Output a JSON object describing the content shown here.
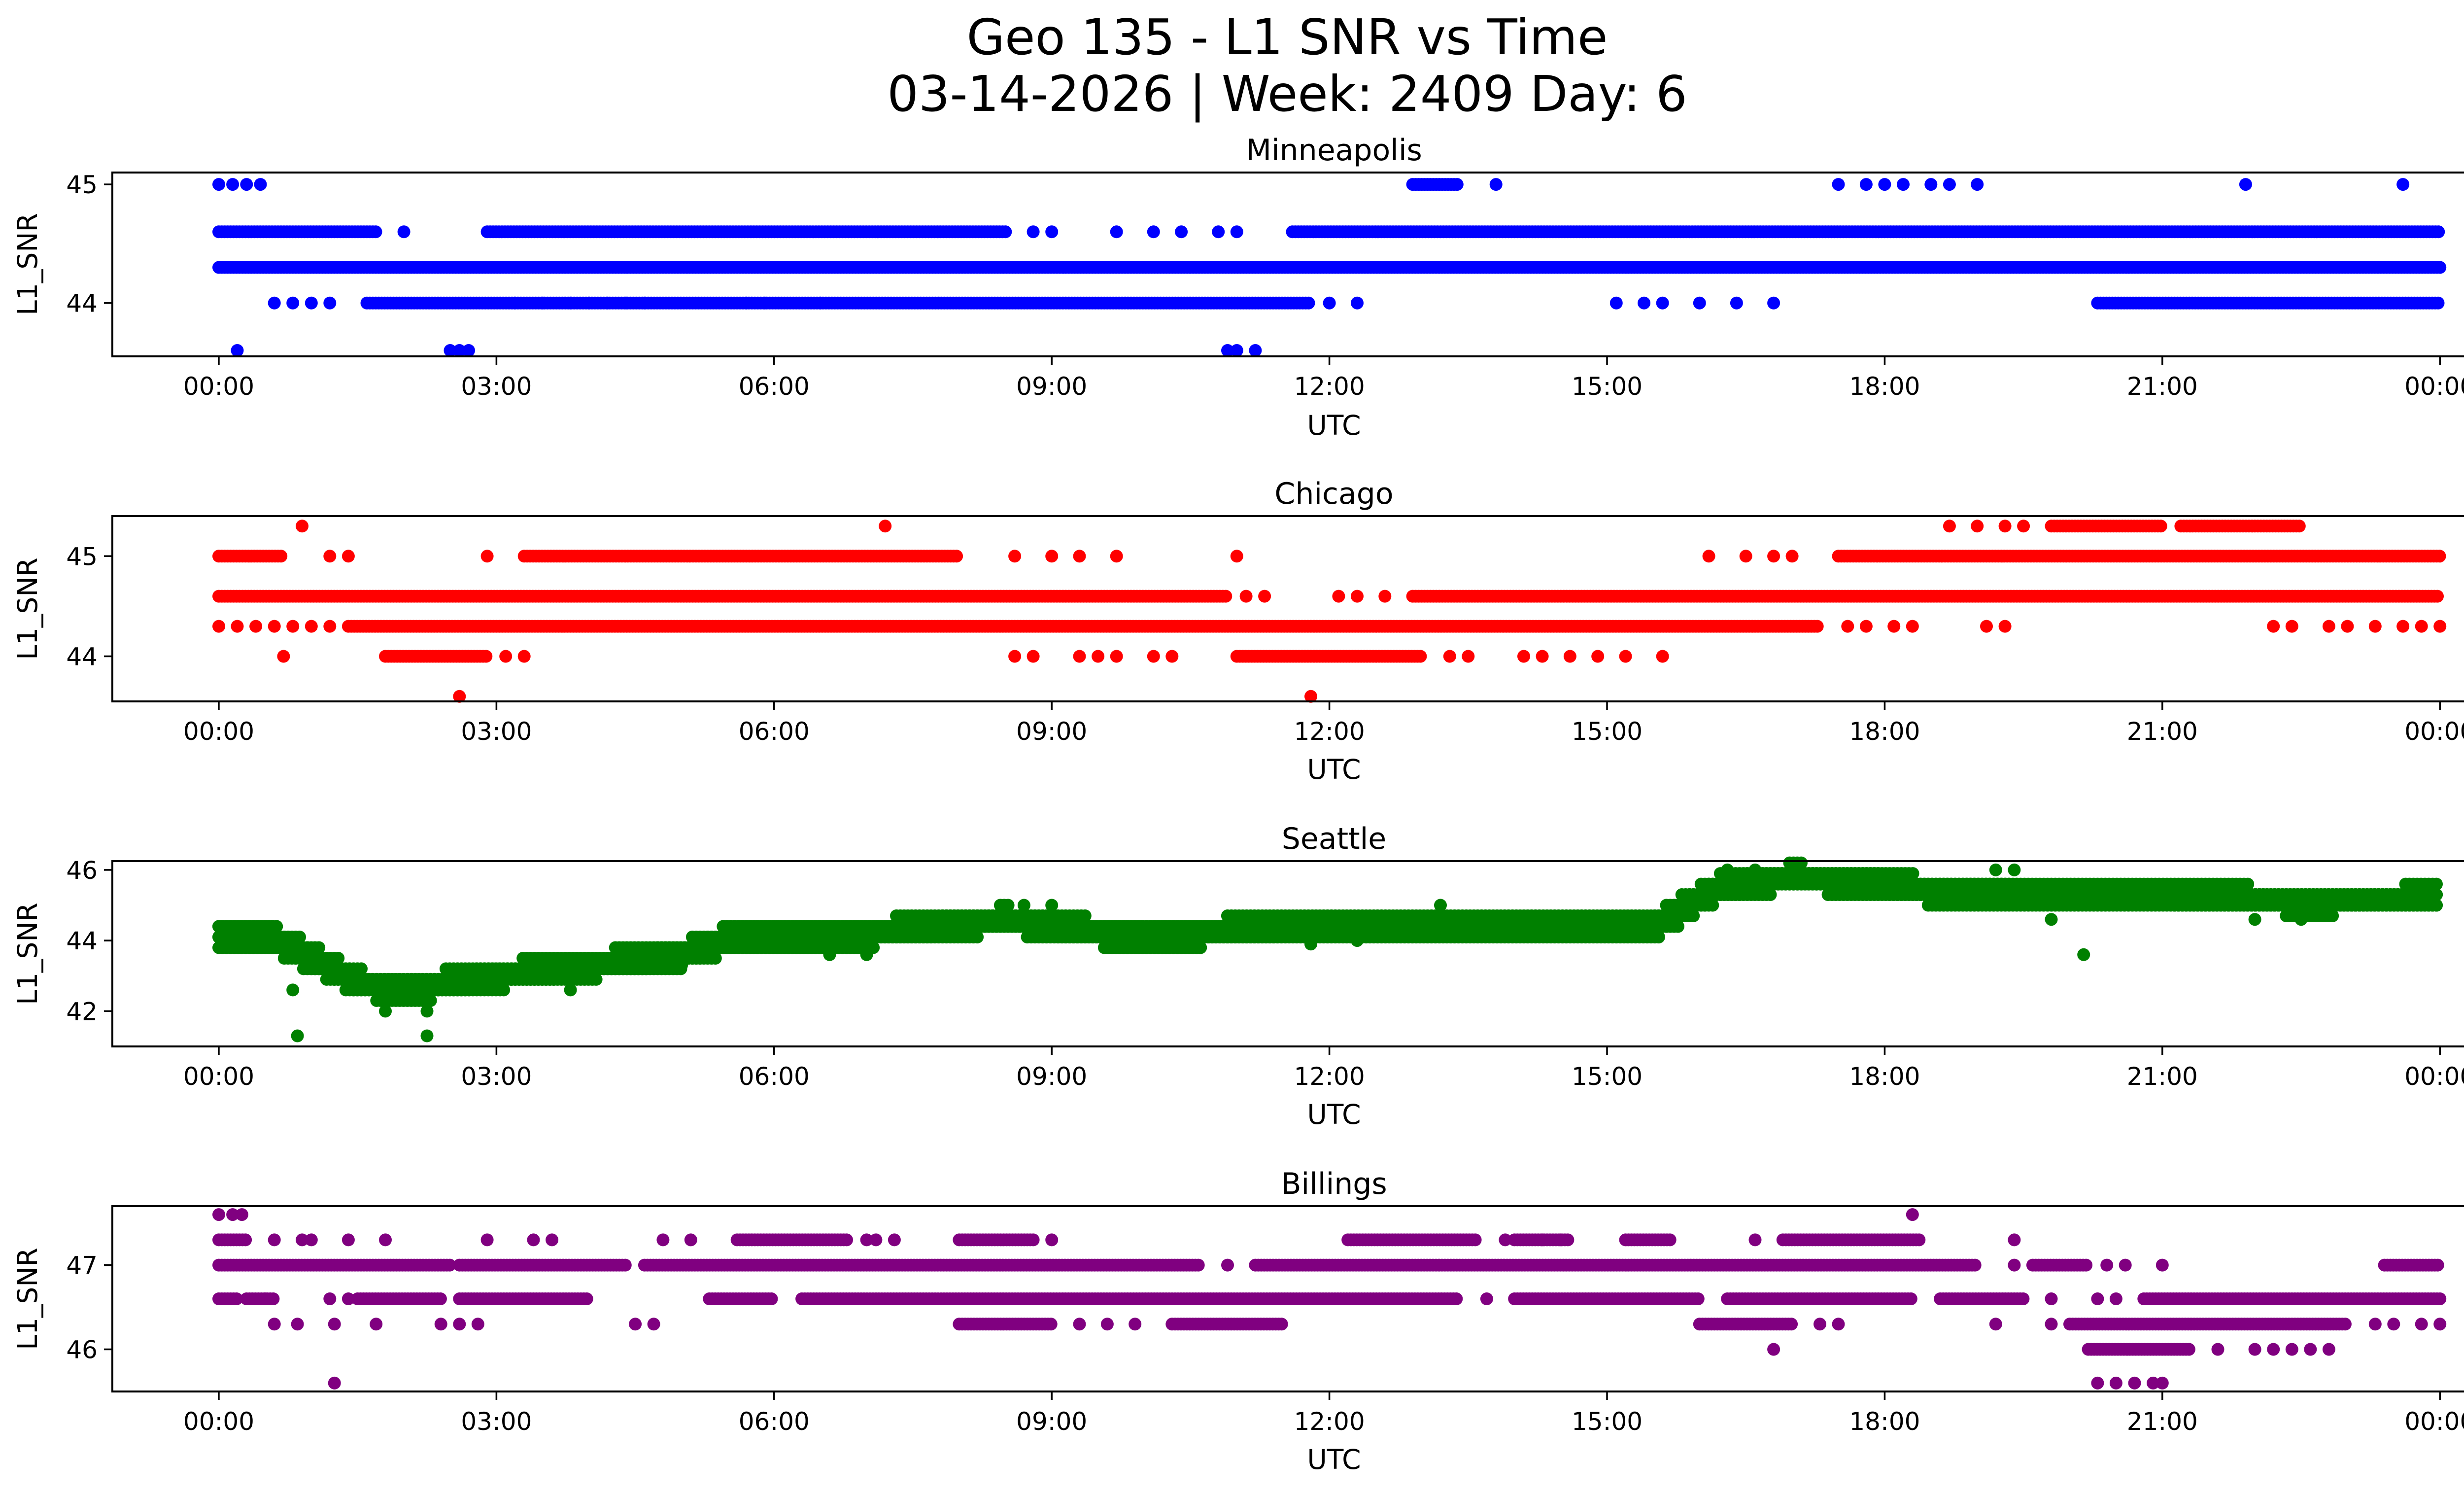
{
  "figure": {
    "title_line1": "Geo 135 - L1 SNR vs Time",
    "title_line2": "03-14-2026 | Week: 2409 Day: 6"
  },
  "chart_data": [
    {
      "type": "scatter",
      "title": "Minneapolis",
      "color": "#0000ff",
      "xlabel": "UTC",
      "ylabel": "L1_SNR",
      "x_units": "hours (UTC)",
      "xlim": [
        -1.15,
        25.25
      ],
      "ylim": [
        43.55,
        45.1
      ],
      "xticks": [
        0,
        3,
        6,
        9,
        12,
        15,
        18,
        21,
        24
      ],
      "xtick_labels": [
        "00:00",
        "03:00",
        "06:00",
        "09:00",
        "12:00",
        "15:00",
        "18:00",
        "21:00",
        "00:00"
      ],
      "yticks": [
        44,
        45
      ],
      "ytick_labels": [
        "44",
        "45"
      ],
      "series": [
        {
          "name": "band 44.3 (dense)",
          "y": 44.3,
          "segments": [
            [
              0,
              24
            ]
          ]
        },
        {
          "name": "band 44.6",
          "y": 44.6,
          "segments": [
            [
              0,
              1.7
            ],
            [
              2.9,
              8.5
            ],
            [
              11.6,
              24
            ]
          ],
          "scattered_x": [
            2.0,
            8.8,
            9.0,
            9.7,
            10.1,
            10.4,
            10.8,
            11.0
          ]
        },
        {
          "name": "band 44.0",
          "y": 44.0,
          "segments": [
            [
              1.6,
              11.8
            ],
            [
              20.3,
              24
            ]
          ],
          "scattered_x": [
            0.6,
            0.8,
            1.0,
            1.2,
            3.2,
            3.5,
            3.8,
            4.0,
            4.2,
            4.4,
            4.6,
            5.7,
            5.9,
            6.5,
            12.0,
            12.3,
            15.1,
            15.4,
            15.6,
            16.0,
            16.4,
            16.8
          ]
        },
        {
          "name": "band 45.0",
          "y": 45.0,
          "segments": [
            [
              12.9,
              13.4
            ]
          ],
          "scattered_x": [
            0.0,
            0.15,
            0.3,
            0.45,
            13.8,
            17.5,
            17.8,
            18.0,
            18.2,
            18.5,
            18.7,
            19.0,
            21.9,
            23.6
          ]
        },
        {
          "name": "band 43.6",
          "y": 43.6,
          "scattered_x": [
            0.2,
            2.5,
            2.6,
            2.7,
            10.9,
            11.0,
            11.2
          ]
        }
      ]
    },
    {
      "type": "scatter",
      "title": "Chicago",
      "color": "#ff0000",
      "xlabel": "UTC",
      "ylabel": "L1_SNR",
      "x_units": "hours (UTC)",
      "xlim": [
        -1.15,
        25.25
      ],
      "ylim": [
        43.55,
        45.4
      ],
      "xticks": [
        0,
        3,
        6,
        9,
        12,
        15,
        18,
        21,
        24
      ],
      "xtick_labels": [
        "00:00",
        "03:00",
        "06:00",
        "09:00",
        "12:00",
        "15:00",
        "18:00",
        "21:00",
        "00:00"
      ],
      "yticks": [
        44,
        45
      ],
      "ytick_labels": [
        "44",
        "45"
      ],
      "series": [
        {
          "name": "band 44.6 (dense)",
          "y": 44.6,
          "segments": [
            [
              0,
              10.9
            ],
            [
              12.9,
              24
            ]
          ],
          "scattered_x": [
            11.1,
            11.3,
            12.1,
            12.3,
            12.6
          ]
        },
        {
          "name": "band 44.3",
          "y": 44.3,
          "segments": [
            [
              1.4,
              17.3
            ]
          ],
          "scattered_x": [
            0.0,
            0.2,
            0.4,
            0.6,
            0.8,
            1.0,
            1.2,
            17.6,
            17.8,
            18.1,
            18.3,
            19.1,
            19.3,
            22.2,
            22.4,
            22.8,
            23.0,
            23.3,
            23.6,
            23.8,
            24.0
          ]
        },
        {
          "name": "band 45.0",
          "y": 45.0,
          "segments": [
            [
              0,
              0.7
            ],
            [
              3.3,
              8.0
            ],
            [
              17.5,
              24
            ]
          ],
          "scattered_x": [
            1.2,
            1.4,
            2.9,
            8.6,
            9.0,
            9.3,
            9.7,
            11.0,
            16.1,
            16.5,
            16.8,
            17.0
          ]
        },
        {
          "name": "band 44.0",
          "y": 44.0,
          "segments": [
            [
              1.8,
              2.9
            ],
            [
              11.0,
              13.0
            ]
          ],
          "scattered_x": [
            0.7,
            3.1,
            3.3,
            8.6,
            8.8,
            9.3,
            9.5,
            9.7,
            10.1,
            10.3,
            13.3,
            13.5,
            14.1,
            14.3,
            14.6,
            14.9,
            15.2,
            15.6
          ]
        },
        {
          "name": "band 45.3",
          "y": 45.3,
          "segments": [
            [
              19.8,
              21.0
            ],
            [
              21.2,
              22.5
            ]
          ],
          "scattered_x": [
            0.9,
            7.2,
            18.7,
            19.0,
            19.3,
            19.5
          ]
        },
        {
          "name": "band 43.6",
          "y": 43.6,
          "scattered_x": [
            2.6,
            11.8
          ]
        }
      ]
    },
    {
      "type": "scatter",
      "title": "Seattle",
      "color": "#008000",
      "xlabel": "UTC",
      "ylabel": "L1_SNR",
      "x_units": "hours (UTC)",
      "xlim": [
        -1.15,
        25.25
      ],
      "ylim": [
        41.0,
        46.25
      ],
      "xticks": [
        0,
        3,
        6,
        9,
        12,
        15,
        18,
        21,
        24
      ],
      "xtick_labels": [
        "00:00",
        "03:00",
        "06:00",
        "09:00",
        "12:00",
        "15:00",
        "18:00",
        "21:00",
        "00:00"
      ],
      "yticks": [
        42,
        44,
        46
      ],
      "ytick_labels": [
        "42",
        "44",
        "46"
      ],
      "trend": {
        "x": [
          0,
          0.5,
          1.0,
          1.5,
          2.0,
          2.5,
          3.0,
          4.0,
          5.0,
          5.7,
          7.0,
          8.5,
          9.3,
          10.0,
          11.5,
          15.5,
          16.2,
          17.0,
          18.0,
          18.5,
          19.5,
          21.0,
          22.5,
          24.0
        ],
        "y": [
          44.2,
          44.2,
          43.5,
          42.8,
          42.6,
          42.8,
          43.0,
          43.3,
          43.6,
          44.2,
          44.2,
          44.6,
          44.3,
          44.1,
          44.4,
          44.4,
          45.5,
          45.8,
          45.6,
          45.4,
          45.3,
          45.3,
          45.1,
          45.2
        ],
        "spread": 0.55
      },
      "outliers": [
        {
          "x": 0.85,
          "y": 41.3
        },
        {
          "x": 2.25,
          "y": 41.3
        },
        {
          "x": 1.8,
          "y": 42.0
        },
        {
          "x": 2.25,
          "y": 42.0
        },
        {
          "x": 0.8,
          "y": 42.6
        },
        {
          "x": 3.8,
          "y": 42.6
        },
        {
          "x": 5.0,
          "y": 43.3
        },
        {
          "x": 6.6,
          "y": 43.6
        },
        {
          "x": 7.0,
          "y": 43.6
        },
        {
          "x": 8.7,
          "y": 45.0
        },
        {
          "x": 9.0,
          "y": 45.0
        },
        {
          "x": 11.8,
          "y": 43.9
        },
        {
          "x": 12.3,
          "y": 44.0
        },
        {
          "x": 13.2,
          "y": 45.0
        },
        {
          "x": 16.3,
          "y": 46.0
        },
        {
          "x": 16.6,
          "y": 46.0
        },
        {
          "x": 19.2,
          "y": 46.0
        },
        {
          "x": 19.4,
          "y": 46.0
        },
        {
          "x": 19.8,
          "y": 44.6
        },
        {
          "x": 20.15,
          "y": 43.6
        },
        {
          "x": 22.0,
          "y": 44.6
        },
        {
          "x": 22.5,
          "y": 44.6
        }
      ]
    },
    {
      "type": "scatter",
      "title": "Billings",
      "color": "#800080",
      "xlabel": "UTC",
      "ylabel": "L1_SNR",
      "x_units": "hours (UTC)",
      "xlim": [
        -1.15,
        25.25
      ],
      "ylim": [
        45.5,
        47.7
      ],
      "xticks": [
        0,
        3,
        6,
        9,
        12,
        15,
        18,
        21,
        24
      ],
      "xtick_labels": [
        "00:00",
        "03:00",
        "06:00",
        "09:00",
        "12:00",
        "15:00",
        "18:00",
        "21:00",
        "00:00"
      ],
      "yticks": [
        46,
        47
      ],
      "ytick_labels": [
        "46",
        "47"
      ],
      "series": [
        {
          "name": "band 47.0 (dense)",
          "y": 47.0,
          "segments": [
            [
              0,
              2.5
            ],
            [
              2.6,
              4.4
            ],
            [
              4.6,
              10.6
            ],
            [
              11.2,
              19.0
            ],
            [
              19.6,
              20.2
            ],
            [
              23.4,
              24
            ]
          ],
          "scattered_x": [
            10.9,
            19.4,
            20.4,
            20.6,
            21.0
          ]
        },
        {
          "name": "band 46.6",
          "y": 46.6,
          "segments": [
            [
              0,
              0.2
            ],
            [
              0.3,
              0.6
            ],
            [
              1.5,
              2.4
            ],
            [
              2.6,
              4.0
            ],
            [
              5.3,
              6.0
            ],
            [
              6.3,
              13.4
            ],
            [
              14.0,
              16.0
            ],
            [
              16.3,
              18.3
            ],
            [
              18.6,
              19.5
            ],
            [
              20.8,
              24
            ]
          ],
          "scattered_x": [
            0.5,
            1.2,
            1.4,
            13.7,
            19.8,
            20.3,
            20.5
          ]
        },
        {
          "name": "band 46.3",
          "y": 46.3,
          "segments": [
            [
              8.0,
              9.0
            ],
            [
              10.3,
              11.5
            ],
            [
              16.0,
              17.0
            ],
            [
              20.0,
              23.0
            ]
          ],
          "scattered_x": [
            0.6,
            0.85,
            1.25,
            1.7,
            2.4,
            2.6,
            2.8,
            4.5,
            4.7,
            9.3,
            9.6,
            9.9,
            17.3,
            17.5,
            19.2,
            19.8,
            23.3,
            23.5,
            23.8,
            24.0
          ]
        },
        {
          "name": "band 47.3",
          "y": 47.3,
          "segments": [
            [
              0,
              0.3
            ],
            [
              5.6,
              6.8
            ],
            [
              8.0,
              8.8
            ],
            [
              12.2,
              13.6
            ],
            [
              14.0,
              14.6
            ],
            [
              15.2,
              15.7
            ],
            [
              16.9,
              18.4
            ]
          ],
          "scattered_x": [
            0.6,
            0.9,
            1.0,
            1.4,
            1.8,
            2.9,
            3.4,
            3.6,
            4.8,
            5.1,
            7.0,
            7.1,
            7.3,
            9.0,
            13.9,
            14.3,
            14.5,
            16.6,
            19.4
          ]
        },
        {
          "name": "band 46.0",
          "y": 46.0,
          "segments": [
            [
              20.2,
              21.3
            ]
          ],
          "scattered_x": [
            16.8,
            21.6,
            22.0,
            22.2,
            22.4,
            22.6,
            22.8
          ]
        },
        {
          "name": "band 47.6",
          "y": 47.6,
          "scattered_x": [
            0.0,
            0.15,
            0.25,
            18.3
          ]
        },
        {
          "name": "band 45.6",
          "y": 45.6,
          "scattered_x": [
            1.25,
            20.3,
            20.5,
            20.7,
            20.9,
            21.0
          ]
        }
      ]
    }
  ]
}
